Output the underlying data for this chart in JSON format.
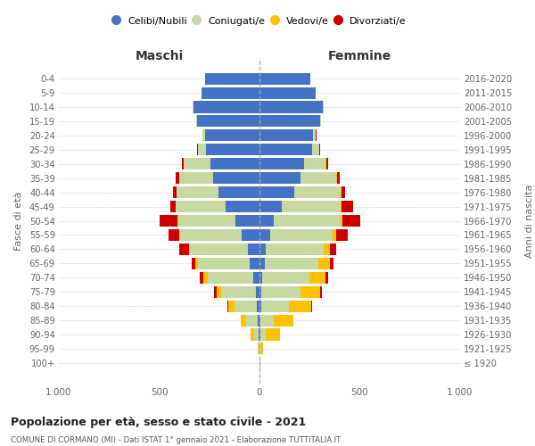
{
  "age_groups": [
    "100+",
    "95-99",
    "90-94",
    "85-89",
    "80-84",
    "75-79",
    "70-74",
    "65-69",
    "60-64",
    "55-59",
    "50-54",
    "45-49",
    "40-44",
    "35-39",
    "30-34",
    "25-29",
    "20-24",
    "15-19",
    "10-14",
    "5-9",
    "0-4"
  ],
  "birth_years": [
    "≤ 1920",
    "1921-1925",
    "1926-1930",
    "1931-1935",
    "1936-1940",
    "1941-1945",
    "1946-1950",
    "1951-1955",
    "1956-1960",
    "1961-1965",
    "1966-1970",
    "1971-1975",
    "1976-1980",
    "1981-1985",
    "1986-1990",
    "1991-1995",
    "1996-2000",
    "2001-2005",
    "2006-2010",
    "2011-2015",
    "2016-2020"
  ],
  "colors": {
    "celibi": "#4472c4",
    "coniugati": "#c5d9a0",
    "vedovi": "#ffc000",
    "divorziati": "#cc0000"
  },
  "males": {
    "celibi": [
      2,
      2,
      5,
      10,
      15,
      20,
      30,
      50,
      60,
      90,
      120,
      170,
      205,
      230,
      245,
      265,
      270,
      310,
      330,
      290,
      270
    ],
    "coniugati": [
      0,
      3,
      20,
      55,
      110,
      170,
      230,
      255,
      285,
      305,
      285,
      248,
      210,
      170,
      135,
      40,
      15,
      5,
      5,
      0,
      0
    ],
    "vedovi": [
      0,
      5,
      20,
      30,
      30,
      25,
      18,
      15,
      5,
      5,
      5,
      0,
      0,
      0,
      0,
      0,
      0,
      0,
      0,
      0,
      0
    ],
    "divorziati": [
      0,
      0,
      0,
      0,
      5,
      10,
      18,
      18,
      48,
      52,
      88,
      28,
      18,
      18,
      5,
      5,
      0,
      0,
      0,
      0,
      0
    ]
  },
  "females": {
    "nubili": [
      2,
      2,
      5,
      5,
      10,
      10,
      15,
      25,
      30,
      55,
      70,
      110,
      175,
      205,
      220,
      260,
      265,
      300,
      315,
      280,
      255
    ],
    "coniugati": [
      0,
      5,
      28,
      65,
      135,
      195,
      235,
      270,
      290,
      310,
      335,
      295,
      228,
      175,
      108,
      38,
      15,
      5,
      5,
      0,
      0
    ],
    "vedovi": [
      1,
      10,
      68,
      98,
      112,
      98,
      78,
      58,
      32,
      18,
      8,
      5,
      5,
      5,
      5,
      0,
      0,
      0,
      0,
      0,
      0
    ],
    "divorziati": [
      0,
      0,
      0,
      0,
      5,
      10,
      14,
      18,
      28,
      58,
      88,
      58,
      18,
      14,
      8,
      5,
      5,
      0,
      0,
      0,
      0
    ]
  },
  "title": "Popolazione per età, sesso e stato civile - 2021",
  "subtitle": "COMUNE DI CORMANO (MI) - Dati ISTAT 1° gennaio 2021 - Elaborazione TUTTITALIA.IT",
  "ylabel_left": "Fasce di età",
  "ylabel_right": "Anni di nascita",
  "xlabel_left": "Maschi",
  "xlabel_right": "Femmine",
  "legend_labels": [
    "Celibi/Nubili",
    "Coniugati/e",
    "Vedovi/e",
    "Divorziati/e"
  ],
  "bg_color": "#ffffff",
  "grid_color": "#cccccc"
}
